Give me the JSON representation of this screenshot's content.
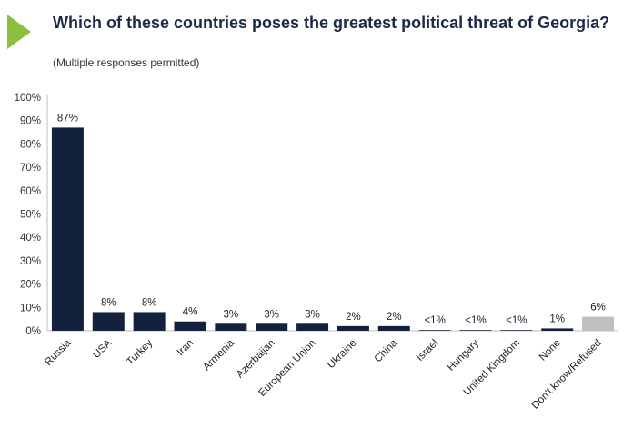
{
  "title": "Which of these countries poses the greatest political threat of Georgia?",
  "subtitle": "(Multiple responses permitted)",
  "chart_data": {
    "type": "bar",
    "title": "Which of these countries poses the greatest political threat of Georgia?",
    "subtitle": "(Multiple responses permitted)",
    "xlabel": "",
    "ylabel": "",
    "ylim": [
      0,
      100
    ],
    "yticks": [
      0,
      10,
      20,
      30,
      40,
      50,
      60,
      70,
      80,
      90,
      100
    ],
    "ytick_labels": [
      "0%",
      "10%",
      "20%",
      "30%",
      "40%",
      "50%",
      "60%",
      "70%",
      "80%",
      "90%",
      "100%"
    ],
    "grid": false,
    "categories": [
      "Russia",
      "USA",
      "Turkey",
      "Iran",
      "Armenia",
      "Azerbaijan",
      "European Union",
      "Ukraine",
      "China",
      "Israel",
      "Hungary",
      "United Kingdom",
      "None",
      "Don't know/Refused"
    ],
    "values": [
      87,
      8,
      8,
      4,
      3,
      3,
      3,
      2,
      2,
      0.3,
      0.3,
      0.3,
      1,
      6
    ],
    "data_labels": [
      "87%",
      "8%",
      "8%",
      "4%",
      "3%",
      "3%",
      "3%",
      "2%",
      "2%",
      "<1%",
      "<1%",
      "<1%",
      "1%",
      "6%"
    ],
    "colors": [
      "#14213d",
      "#14213d",
      "#14213d",
      "#14213d",
      "#14213d",
      "#14213d",
      "#14213d",
      "#14213d",
      "#14213d",
      "#14213d",
      "#14213d",
      "#14213d",
      "#14213d",
      "#bfbfbf"
    ]
  },
  "colors": {
    "accent": "#8cbf3f",
    "title": "#1b2a45",
    "bar": "#14213d",
    "bar_other": "#bfbfbf",
    "axis": "#bfbfbf"
  }
}
